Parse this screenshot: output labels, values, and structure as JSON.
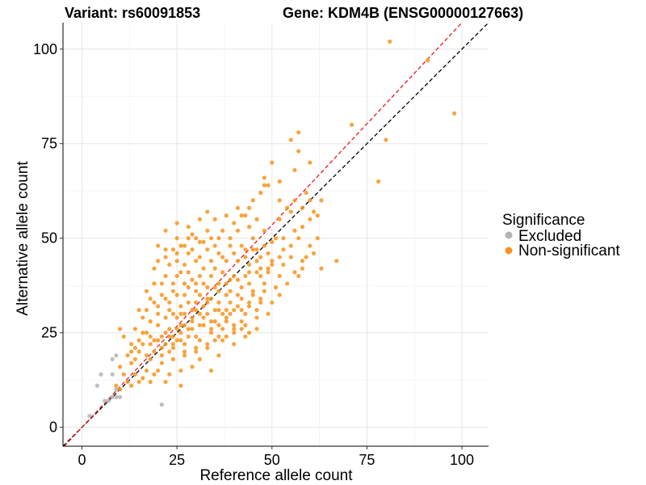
{
  "chart_data": {
    "type": "scatter",
    "title_variant": "Variant: rs60091853",
    "title_gene": "Gene: KDM4B (ENSG00000127663)",
    "xlabel": "Reference allele count",
    "ylabel": "Alternative allele count",
    "xlim": [
      -5,
      107
    ],
    "ylim": [
      -5,
      107
    ],
    "x_ticks": [
      0,
      25,
      50,
      75,
      100
    ],
    "y_ticks": [
      0,
      25,
      50,
      75,
      100
    ],
    "grid": true,
    "legend": {
      "title": "Significance",
      "placement": "right",
      "entries": [
        {
          "label": "Excluded",
          "color": "#b3b3b3"
        },
        {
          "label": "Non-significant",
          "color": "#f7941d"
        }
      ]
    },
    "reference_lines": [
      {
        "slope": 1.0,
        "intercept": 0,
        "color": "#000000",
        "dash": true
      },
      {
        "slope": 1.07,
        "intercept": 0,
        "color": "#e41a1c",
        "dash": true
      }
    ],
    "series": [
      {
        "name": "Excluded",
        "color": "#b3b3b3",
        "points": [
          [
            2,
            3
          ],
          [
            4,
            11
          ],
          [
            5,
            14
          ],
          [
            7,
            7
          ],
          [
            8,
            14
          ],
          [
            8,
            18
          ],
          [
            9,
            19
          ],
          [
            9,
            10
          ],
          [
            9,
            8
          ],
          [
            8,
            8
          ],
          [
            6,
            7
          ],
          [
            21,
            6
          ],
          [
            10,
            8
          ]
        ]
      },
      {
        "name": "Non-significant",
        "color": "#f7941d",
        "points": [
          [
            81,
            102
          ],
          [
            91,
            97
          ],
          [
            98,
            83
          ],
          [
            71,
            80
          ],
          [
            80,
            76
          ],
          [
            78,
            65
          ],
          [
            57,
            78
          ],
          [
            55,
            76
          ],
          [
            57,
            73
          ],
          [
            60,
            70
          ],
          [
            50,
            70
          ],
          [
            48,
            66
          ],
          [
            48,
            64
          ],
          [
            49,
            64
          ],
          [
            52,
            65
          ],
          [
            56,
            68
          ],
          [
            59,
            62
          ],
          [
            60,
            60
          ],
          [
            63,
            60
          ],
          [
            61,
            57
          ],
          [
            58,
            58
          ],
          [
            56,
            60
          ],
          [
            54,
            58
          ],
          [
            52,
            60
          ],
          [
            47,
            62
          ],
          [
            45,
            60
          ],
          [
            44,
            58
          ],
          [
            43,
            56
          ],
          [
            41,
            58
          ],
          [
            40,
            54
          ],
          [
            38,
            56
          ],
          [
            33,
            57
          ],
          [
            31,
            55
          ],
          [
            35,
            55
          ],
          [
            28,
            53
          ],
          [
            29,
            51
          ],
          [
            25,
            50
          ],
          [
            25,
            54
          ],
          [
            22,
            52
          ],
          [
            27,
            48
          ],
          [
            30,
            50
          ],
          [
            33,
            52
          ],
          [
            36,
            50
          ],
          [
            39,
            50
          ],
          [
            42,
            48
          ],
          [
            45,
            50
          ],
          [
            48,
            52
          ],
          [
            51,
            50
          ],
          [
            53,
            47
          ],
          [
            55,
            48
          ],
          [
            57,
            50
          ],
          [
            60,
            48
          ],
          [
            62,
            50
          ],
          [
            59,
            45
          ],
          [
            61,
            46
          ],
          [
            58,
            44
          ],
          [
            55,
            45
          ],
          [
            52,
            45
          ],
          [
            49,
            46
          ],
          [
            46,
            44
          ],
          [
            43,
            45
          ],
          [
            40,
            46
          ],
          [
            37,
            45
          ],
          [
            34,
            44
          ],
          [
            31,
            45
          ],
          [
            28,
            46
          ],
          [
            25,
            44
          ],
          [
            22,
            45
          ],
          [
            20,
            44
          ],
          [
            19,
            42
          ],
          [
            22,
            40
          ],
          [
            25,
            40
          ],
          [
            28,
            41
          ],
          [
            31,
            40
          ],
          [
            34,
            40
          ],
          [
            37,
            41
          ],
          [
            40,
            40
          ],
          [
            43,
            40
          ],
          [
            46,
            41
          ],
          [
            49,
            42
          ],
          [
            52,
            40
          ],
          [
            63,
            42
          ],
          [
            67,
            44
          ],
          [
            57,
            40
          ],
          [
            54,
            38
          ],
          [
            51,
            37
          ],
          [
            48,
            38
          ],
          [
            45,
            36
          ],
          [
            42,
            37
          ],
          [
            39,
            36
          ],
          [
            36,
            36
          ],
          [
            33,
            37
          ],
          [
            30,
            36
          ],
          [
            27,
            35
          ],
          [
            24,
            36
          ],
          [
            21,
            35
          ],
          [
            18,
            34
          ],
          [
            17,
            36
          ],
          [
            20,
            32
          ],
          [
            23,
            31
          ],
          [
            26,
            32
          ],
          [
            29,
            31
          ],
          [
            32,
            32
          ],
          [
            35,
            31
          ],
          [
            38,
            31
          ],
          [
            41,
            32
          ],
          [
            44,
            33
          ],
          [
            47,
            34
          ],
          [
            50,
            33
          ],
          [
            52,
            35
          ],
          [
            42,
            28
          ],
          [
            40,
            26
          ],
          [
            38,
            29
          ],
          [
            35,
            28
          ],
          [
            32,
            27
          ],
          [
            29,
            28
          ],
          [
            26,
            27
          ],
          [
            23,
            26
          ],
          [
            20,
            27
          ],
          [
            18,
            28
          ],
          [
            16,
            29
          ],
          [
            15,
            31
          ],
          [
            14,
            26
          ],
          [
            17,
            25
          ],
          [
            19,
            23
          ],
          [
            22,
            22
          ],
          [
            25,
            23
          ],
          [
            28,
            24
          ],
          [
            31,
            23
          ],
          [
            34,
            25
          ],
          [
            37,
            23
          ],
          [
            40,
            22
          ],
          [
            44,
            25
          ],
          [
            46,
            26
          ],
          [
            43,
            24
          ],
          [
            13,
            22
          ],
          [
            11,
            24
          ],
          [
            10,
            26
          ],
          [
            12,
            19
          ],
          [
            15,
            20
          ],
          [
            18,
            18
          ],
          [
            21,
            17
          ],
          [
            24,
            18
          ],
          [
            27,
            19
          ],
          [
            30,
            20
          ],
          [
            33,
            21
          ],
          [
            36,
            19
          ],
          [
            34,
            15
          ],
          [
            13,
            17
          ],
          [
            10,
            16
          ],
          [
            11,
            14
          ],
          [
            14,
            14
          ],
          [
            17,
            15
          ],
          [
            20,
            15
          ],
          [
            23,
            14
          ],
          [
            26,
            15
          ],
          [
            29,
            16
          ],
          [
            31,
            18
          ],
          [
            12,
            12
          ],
          [
            15,
            12
          ],
          [
            18,
            12
          ],
          [
            22,
            12
          ],
          [
            26,
            11
          ],
          [
            9,
            11
          ],
          [
            10,
            10
          ],
          [
            13,
            11
          ],
          [
            16,
            13
          ],
          [
            19,
            14
          ],
          [
            21,
            19
          ],
          [
            23,
            20
          ],
          [
            24,
            22
          ],
          [
            27,
            22
          ],
          [
            30,
            24
          ],
          [
            32,
            29
          ],
          [
            36,
            33
          ],
          [
            38,
            35
          ],
          [
            41,
            35
          ],
          [
            44,
            38
          ],
          [
            47,
            40
          ],
          [
            49,
            41
          ],
          [
            26,
            30
          ],
          [
            28,
            33
          ],
          [
            30,
            33
          ],
          [
            33,
            34
          ],
          [
            36,
            38
          ],
          [
            39,
            39
          ],
          [
            41,
            44
          ],
          [
            43,
            47
          ],
          [
            45,
            47
          ],
          [
            47,
            45
          ],
          [
            50,
            44
          ],
          [
            35,
            42
          ],
          [
            32,
            42
          ],
          [
            30,
            38
          ],
          [
            27,
            38
          ],
          [
            24,
            38
          ],
          [
            21,
            38
          ],
          [
            19,
            38
          ],
          [
            22,
            29
          ],
          [
            25,
            29
          ],
          [
            31,
            35
          ],
          [
            34,
            34
          ],
          [
            37,
            30
          ],
          [
            40,
            31
          ],
          [
            43,
            30
          ],
          [
            46,
            31
          ],
          [
            48,
            36
          ],
          [
            45,
            35
          ],
          [
            42,
            34
          ],
          [
            39,
            33
          ],
          [
            36,
            27
          ],
          [
            33,
            30
          ],
          [
            29,
            26
          ],
          [
            26,
            25
          ],
          [
            24,
            24
          ],
          [
            21,
            24
          ],
          [
            19,
            20
          ],
          [
            17,
            19
          ],
          [
            16,
            22
          ],
          [
            14,
            18
          ],
          [
            20,
            30
          ],
          [
            23,
            33
          ],
          [
            25,
            35
          ],
          [
            27,
            43
          ],
          [
            30,
            44
          ],
          [
            33,
            47
          ],
          [
            36,
            46
          ],
          [
            39,
            48
          ],
          [
            44,
            43
          ],
          [
            46,
            47
          ],
          [
            48,
            48
          ],
          [
            50,
            49
          ],
          [
            53,
            50
          ],
          [
            56,
            52
          ],
          [
            58,
            53
          ],
          [
            60,
            55
          ],
          [
            62,
            56
          ],
          [
            44,
            53
          ],
          [
            41,
            52
          ],
          [
            38,
            44
          ],
          [
            35,
            48
          ],
          [
            32,
            49
          ],
          [
            29,
            47
          ],
          [
            26,
            48
          ],
          [
            24,
            47
          ],
          [
            22,
            47
          ],
          [
            20,
            48
          ],
          [
            23,
            43
          ],
          [
            26,
            41
          ],
          [
            29,
            39
          ],
          [
            32,
            38
          ],
          [
            35,
            37
          ],
          [
            38,
            38
          ],
          [
            41,
            39
          ],
          [
            44,
            41
          ],
          [
            47,
            42
          ],
          [
            50,
            43
          ],
          [
            53,
            43
          ],
          [
            56,
            41
          ],
          [
            58,
            42
          ],
          [
            52,
            55
          ],
          [
            55,
            57
          ],
          [
            46,
            55
          ],
          [
            42,
            56
          ],
          [
            37,
            52
          ],
          [
            34,
            50
          ],
          [
            31,
            49
          ],
          [
            28,
            50
          ],
          [
            25,
            46
          ],
          [
            28,
            37
          ],
          [
            31,
            30
          ],
          [
            34,
            28
          ],
          [
            37,
            26
          ],
          [
            40,
            27
          ],
          [
            43,
            27
          ],
          [
            46,
            29
          ],
          [
            49,
            30
          ],
          [
            47,
            33
          ],
          [
            44,
            32
          ],
          [
            42,
            31
          ],
          [
            39,
            30
          ],
          [
            36,
            31
          ],
          [
            33,
            33
          ],
          [
            30,
            31
          ],
          [
            27,
            30
          ],
          [
            24,
            30
          ],
          [
            22,
            34
          ],
          [
            19,
            33
          ],
          [
            17,
            31
          ],
          [
            18,
            22
          ],
          [
            21,
            21
          ],
          [
            24,
            21
          ],
          [
            27,
            20
          ],
          [
            30,
            21
          ],
          [
            33,
            22
          ],
          [
            35,
            23
          ],
          [
            38,
            24
          ],
          [
            40,
            25
          ],
          [
            42,
            26
          ],
          [
            29,
            29
          ],
          [
            27,
            27
          ],
          [
            25,
            26
          ],
          [
            23,
            24
          ],
          [
            20,
            23
          ],
          [
            18,
            24
          ],
          [
            16,
            25
          ],
          [
            15,
            23
          ],
          [
            14,
            21
          ],
          [
            13,
            20
          ],
          [
            22,
            25
          ],
          [
            26,
            23
          ],
          [
            28,
            26
          ],
          [
            31,
            27
          ],
          [
            34,
            26
          ],
          [
            36,
            24
          ],
          [
            38,
            28
          ]
        ]
      }
    ]
  }
}
